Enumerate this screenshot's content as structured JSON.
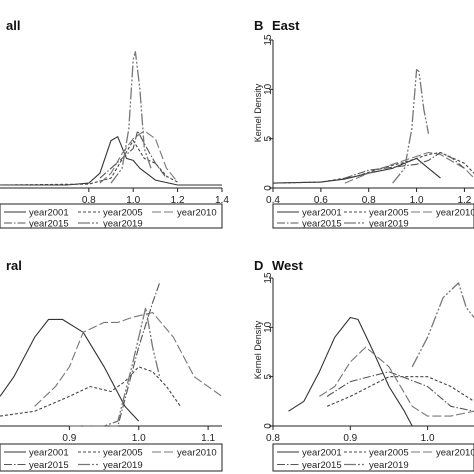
{
  "chart_data": [
    {
      "id": "A",
      "type": "line",
      "title": "all",
      "ylabel": "",
      "xlim": [
        0.4,
        1.4
      ],
      "ylim": [
        0,
        15
      ],
      "xticks": [
        "0.8",
        "1.0",
        "1.2",
        "1.4"
      ],
      "yticks": [],
      "series": [
        {
          "name": "year2001",
          "x": [
            0.4,
            0.7,
            0.8,
            0.85,
            0.9,
            0.93,
            0.97,
            1.0,
            1.03,
            1.1,
            1.2,
            1.4
          ],
          "y": [
            0.3,
            0.3,
            0.5,
            1.5,
            4.8,
            5.2,
            3.0,
            2.8,
            2.0,
            0.8,
            0.3,
            0.3
          ]
        },
        {
          "name": "year2005",
          "x": [
            0.4,
            0.8,
            0.9,
            1.0,
            1.05,
            1.1,
            1.15,
            1.2
          ],
          "y": [
            0.3,
            0.4,
            1.0,
            4.8,
            3.0,
            2.5,
            1.2,
            0.6
          ]
        },
        {
          "name": "year2010",
          "x": [
            0.85,
            0.9,
            0.95,
            1.0,
            1.05,
            1.1,
            1.15,
            1.2
          ],
          "y": [
            0.5,
            1.5,
            3.5,
            5.0,
            5.8,
            5.0,
            2.0,
            0.6
          ]
        },
        {
          "name": "year2015",
          "x": [
            0.85,
            0.9,
            0.95,
            1.0,
            1.02,
            1.05,
            1.1,
            1.15
          ],
          "y": [
            1.0,
            2.0,
            3.0,
            4.0,
            5.8,
            4.5,
            2.5,
            1.0
          ]
        },
        {
          "name": "year2019",
          "x": [
            0.9,
            0.95,
            0.98,
            1.0,
            1.01,
            1.03,
            1.05,
            1.08
          ],
          "y": [
            0.5,
            2.0,
            6.0,
            13.0,
            13.8,
            10.0,
            4.0,
            2.0
          ]
        }
      ]
    },
    {
      "id": "B",
      "type": "line",
      "title": "East",
      "ylabel": "Kernel Density",
      "xlim": [
        0.4,
        1.24
      ],
      "ylim": [
        0,
        15
      ],
      "xticks": [
        "0.4",
        "0.6",
        "0.8",
        "1.0",
        "1.2"
      ],
      "yticks": [
        "0",
        "5",
        "10",
        "15"
      ],
      "series": [
        {
          "name": "year2001",
          "x": [
            0.4,
            0.6,
            0.7,
            0.8,
            0.9,
            0.95,
            1.0,
            1.05,
            1.1
          ],
          "y": [
            0.5,
            0.6,
            0.9,
            1.5,
            2.0,
            2.5,
            3.0,
            2.0,
            1.0
          ]
        },
        {
          "name": "year2005",
          "x": [
            0.4,
            0.6,
            0.75,
            0.85,
            0.95,
            1.05,
            1.1,
            1.2,
            1.24
          ],
          "y": [
            0.5,
            0.6,
            1.2,
            2.0,
            2.6,
            3.4,
            3.6,
            2.5,
            1.5
          ]
        },
        {
          "name": "year2010",
          "x": [
            0.7,
            0.8,
            0.9,
            1.0,
            1.05,
            1.1,
            1.2,
            1.24
          ],
          "y": [
            0.5,
            1.5,
            2.4,
            3.2,
            3.6,
            3.4,
            2.0,
            1.0
          ]
        },
        {
          "name": "year2015",
          "x": [
            0.7,
            0.8,
            0.9,
            1.0,
            1.05,
            1.1,
            1.15,
            1.2
          ],
          "y": [
            1.0,
            1.8,
            2.1,
            2.4,
            2.8,
            3.6,
            3.0,
            2.0
          ]
        },
        {
          "name": "year2019",
          "x": [
            0.9,
            0.95,
            0.98,
            1.0,
            1.01,
            1.03,
            1.05
          ],
          "y": [
            0.5,
            2.0,
            6.0,
            12.0,
            11.8,
            8.0,
            5.5
          ]
        }
      ]
    },
    {
      "id": "C",
      "type": "line",
      "title": "ral",
      "ylabel": "",
      "xlim": [
        0.8,
        1.12
      ],
      "ylim": [
        0,
        15
      ],
      "xticks": [
        "0.9",
        "1.0",
        "1.1"
      ],
      "yticks": [],
      "series": [
        {
          "name": "year2001",
          "x": [
            0.8,
            0.82,
            0.85,
            0.87,
            0.89,
            0.92,
            0.95,
            0.98,
            1.0
          ],
          "y": [
            3.0,
            5.0,
            9.0,
            10.8,
            10.8,
            9.5,
            6.0,
            2.0,
            0.5
          ]
        },
        {
          "name": "year2005",
          "x": [
            0.8,
            0.85,
            0.9,
            0.93,
            0.96,
            0.98,
            1.0,
            1.02,
            1.04,
            1.06
          ],
          "y": [
            1.0,
            1.5,
            3.0,
            4.0,
            3.5,
            4.5,
            6.0,
            5.5,
            4.0,
            2.0
          ]
        },
        {
          "name": "year2010",
          "x": [
            0.85,
            0.88,
            0.9,
            0.92,
            0.95,
            0.97,
            0.99,
            1.02,
            1.05,
            1.08,
            1.12
          ],
          "y": [
            2.0,
            4.0,
            6.0,
            9.5,
            10.5,
            10.5,
            11.0,
            11.5,
            9.0,
            5.0,
            3.0
          ]
        },
        {
          "name": "year2015",
          "x": [
            0.9,
            0.92,
            0.95,
            0.97,
            1.0,
            1.02,
            1.03
          ],
          "y": [
            0.0,
            0.0,
            0.0,
            0.0,
            8.0,
            12.5,
            14.5
          ]
        },
        {
          "name": "year2019",
          "x": [
            0.9,
            0.92,
            0.95,
            0.97,
            0.99,
            1.01,
            1.02,
            1.03
          ],
          "y": [
            0.0,
            0.0,
            0.0,
            0.5,
            6.0,
            12.0,
            8.0,
            5.0
          ]
        }
      ]
    },
    {
      "id": "D",
      "type": "line",
      "title": "West",
      "ylabel": "Kernel Density",
      "xlim": [
        0.8,
        1.06
      ],
      "ylim": [
        0,
        15
      ],
      "xticks": [
        "0.8",
        "0.9",
        "1.0"
      ],
      "yticks": [
        "0",
        "5",
        "10",
        "15"
      ],
      "series": [
        {
          "name": "year2001",
          "x": [
            0.82,
            0.84,
            0.86,
            0.88,
            0.9,
            0.91,
            0.93,
            0.95,
            0.97,
            0.98
          ],
          "y": [
            1.5,
            2.5,
            5.5,
            9.0,
            11.0,
            10.8,
            7.5,
            4.0,
            1.5,
            0.0
          ]
        },
        {
          "name": "year2005",
          "x": [
            0.87,
            0.9,
            0.95,
            1.0,
            1.03,
            1.06
          ],
          "y": [
            2.0,
            3.0,
            5.0,
            5.0,
            4.0,
            2.5
          ]
        },
        {
          "name": "year2010",
          "x": [
            0.86,
            0.88,
            0.9,
            0.92,
            0.95,
            0.98,
            1.0,
            1.03,
            1.06
          ],
          "y": [
            3.0,
            4.0,
            6.5,
            8.0,
            6.0,
            2.0,
            1.0,
            1.0,
            1.5
          ]
        },
        {
          "name": "year2015",
          "x": [
            0.87,
            0.9,
            0.95,
            1.0,
            1.03,
            1.06
          ],
          "y": [
            3.0,
            4.5,
            5.5,
            4.0,
            2.0,
            1.5
          ]
        },
        {
          "name": "year2019",
          "x": [
            0.98,
            1.0,
            1.02,
            1.04,
            1.05,
            1.06
          ],
          "y": [
            6.0,
            9.0,
            13.0,
            14.5,
            12.0,
            11.0
          ]
        }
      ]
    }
  ],
  "panels": [
    {
      "letter": "",
      "title": "all"
    },
    {
      "letter": "B",
      "title": "East"
    },
    {
      "letter": "",
      "title": "ral"
    },
    {
      "letter": "D",
      "title": "West"
    }
  ],
  "legend_labels": [
    "year2001",
    "year2005",
    "year2010",
    "year2015",
    "year2019"
  ]
}
